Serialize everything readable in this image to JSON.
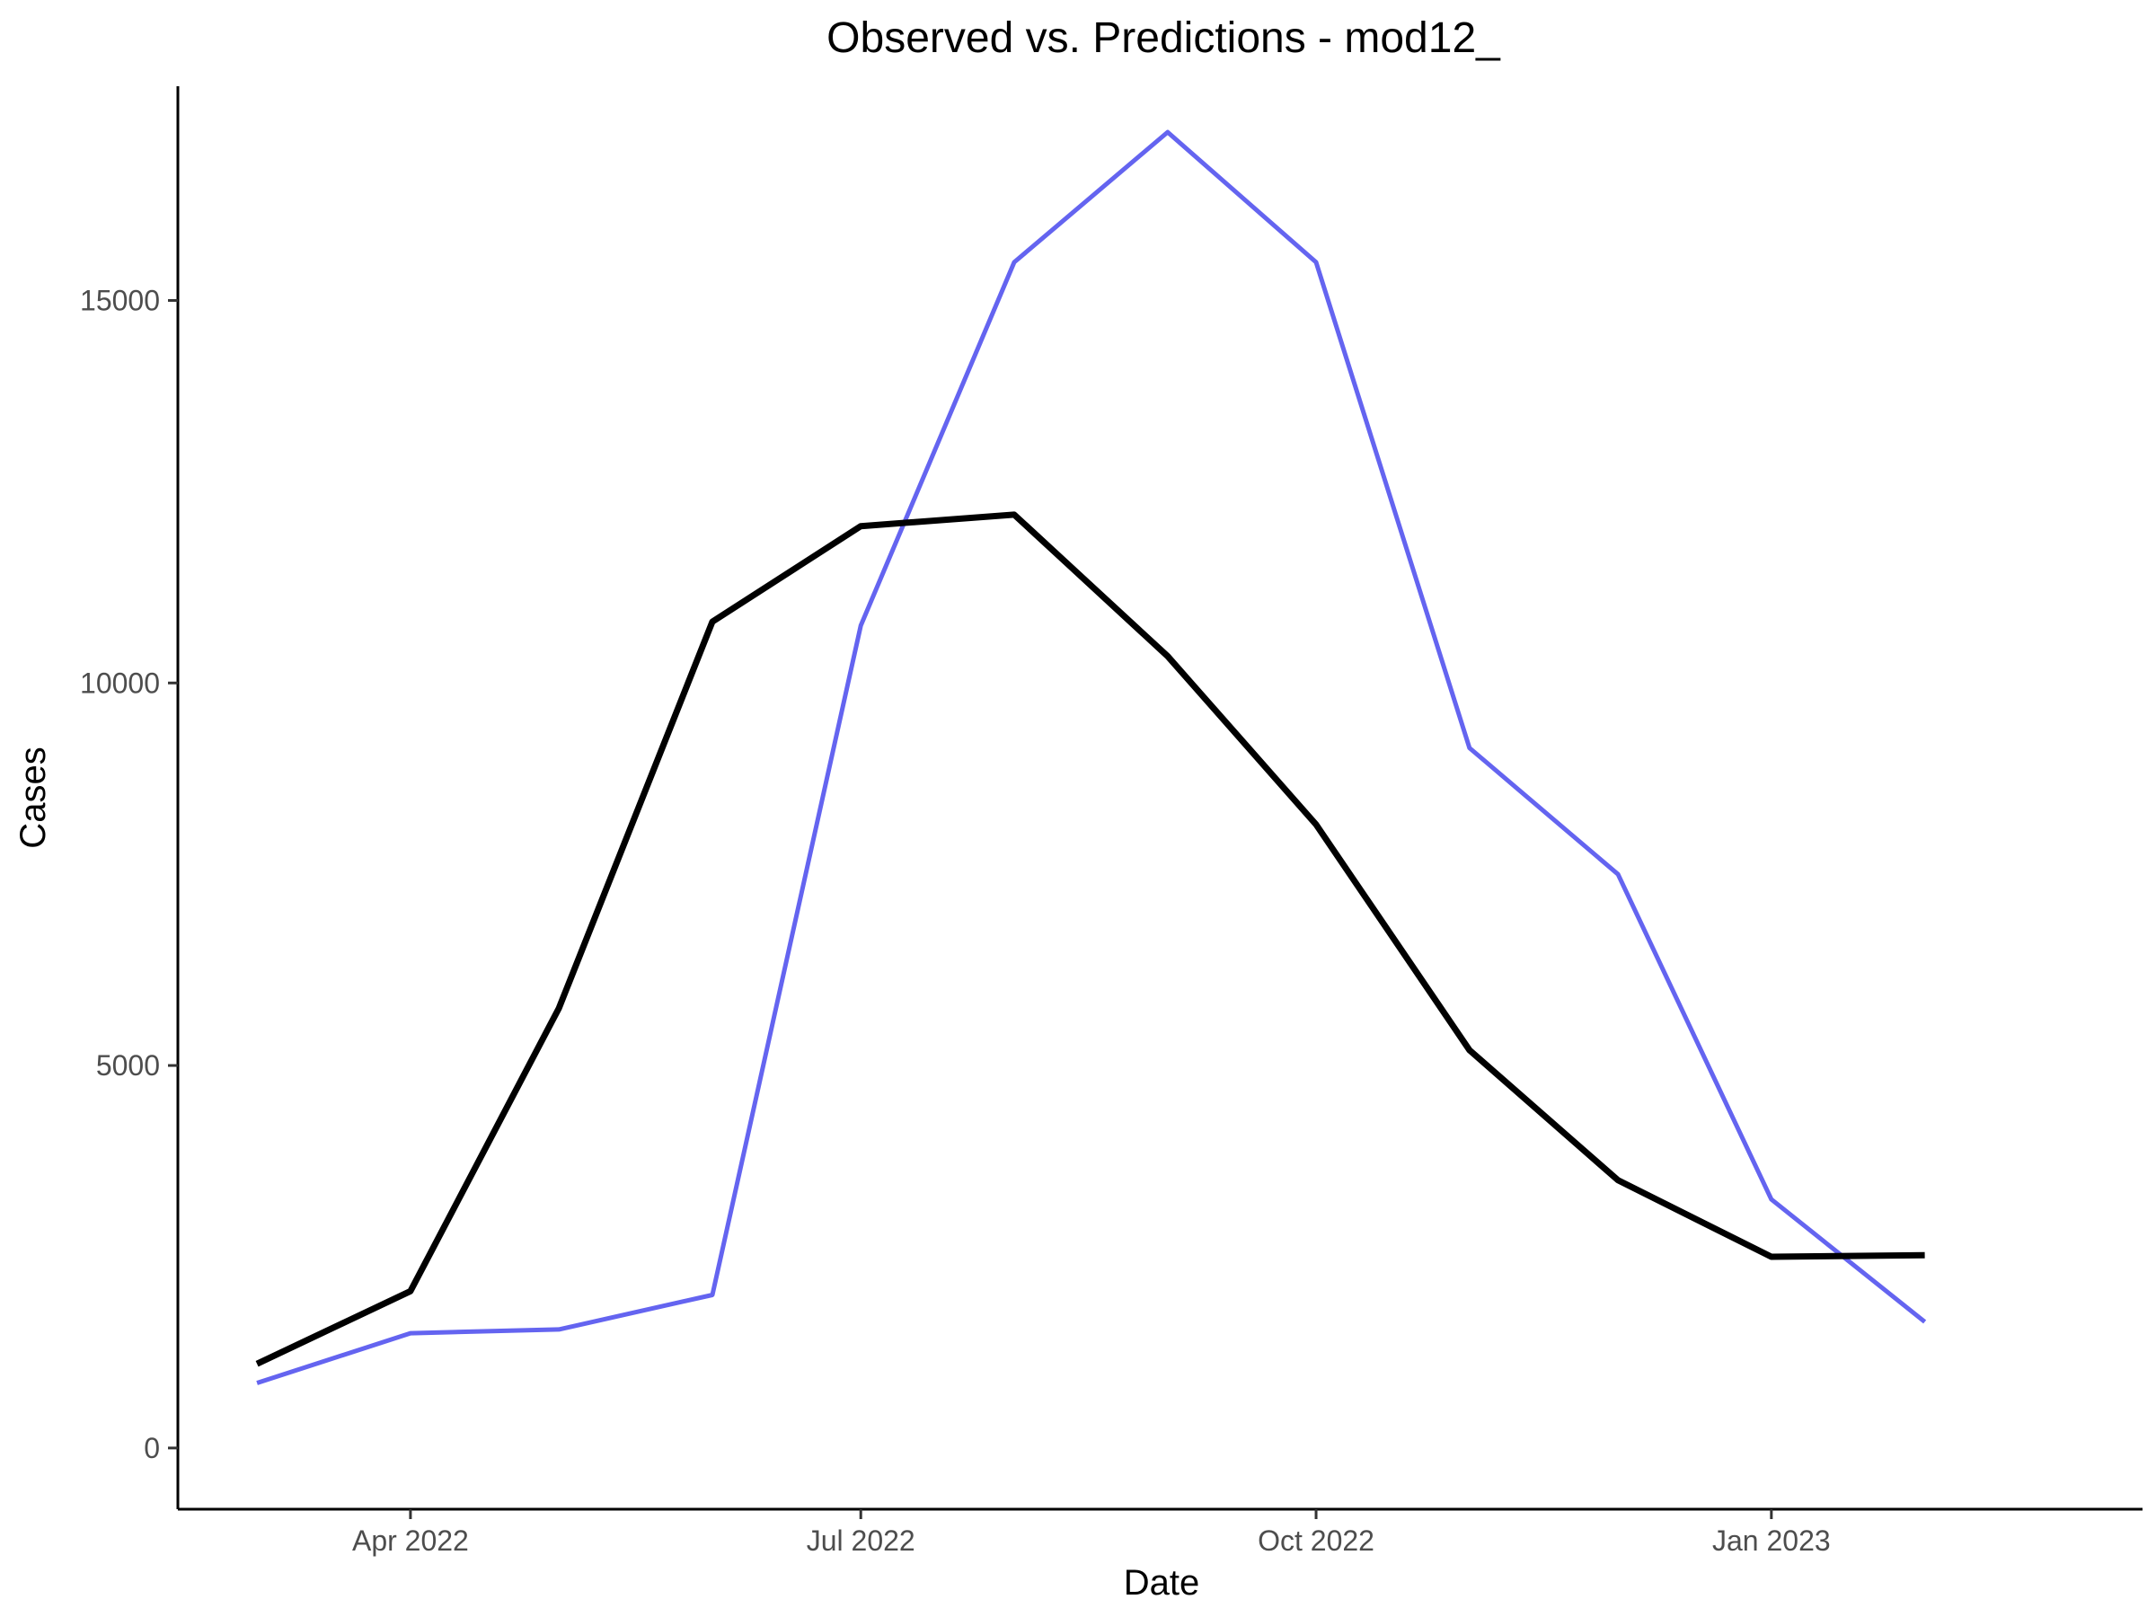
{
  "chart_data": {
    "type": "line",
    "title": "Observed vs. Predictions - mod12_",
    "xlabel": "Date",
    "ylabel": "Cases",
    "x": [
      "2022-03-01",
      "2022-04-01",
      "2022-05-01",
      "2022-06-01",
      "2022-07-01",
      "2022-08-01",
      "2022-09-01",
      "2022-10-01",
      "2022-11-01",
      "2022-12-01",
      "2023-01-01",
      "2023-02-01"
    ],
    "x_ticks": [
      {
        "date": "2022-04-01",
        "label": "Apr 2022"
      },
      {
        "date": "2022-07-01",
        "label": "Jul 2022"
      },
      {
        "date": "2022-10-01",
        "label": "Oct 2022"
      },
      {
        "date": "2023-01-01",
        "label": "Jan 2023"
      }
    ],
    "y_ticks": [
      0,
      5000,
      10000,
      15000
    ],
    "xlim": [
      "2022-02-13",
      "2023-03-17"
    ],
    "ylim": [
      -800,
      17800
    ],
    "series": [
      {
        "color": "#000000",
        "values": [
          1100,
          2050,
          5750,
          10800,
          12050,
          12200,
          10350,
          8150,
          5200,
          3500,
          2500,
          2520
        ]
      },
      {
        "color": "#6464f0",
        "values": [
          850,
          1500,
          1550,
          2000,
          10750,
          15500,
          17200,
          15500,
          9150,
          7500,
          3250,
          1650
        ]
      }
    ],
    "grid": false,
    "legend": "none"
  }
}
